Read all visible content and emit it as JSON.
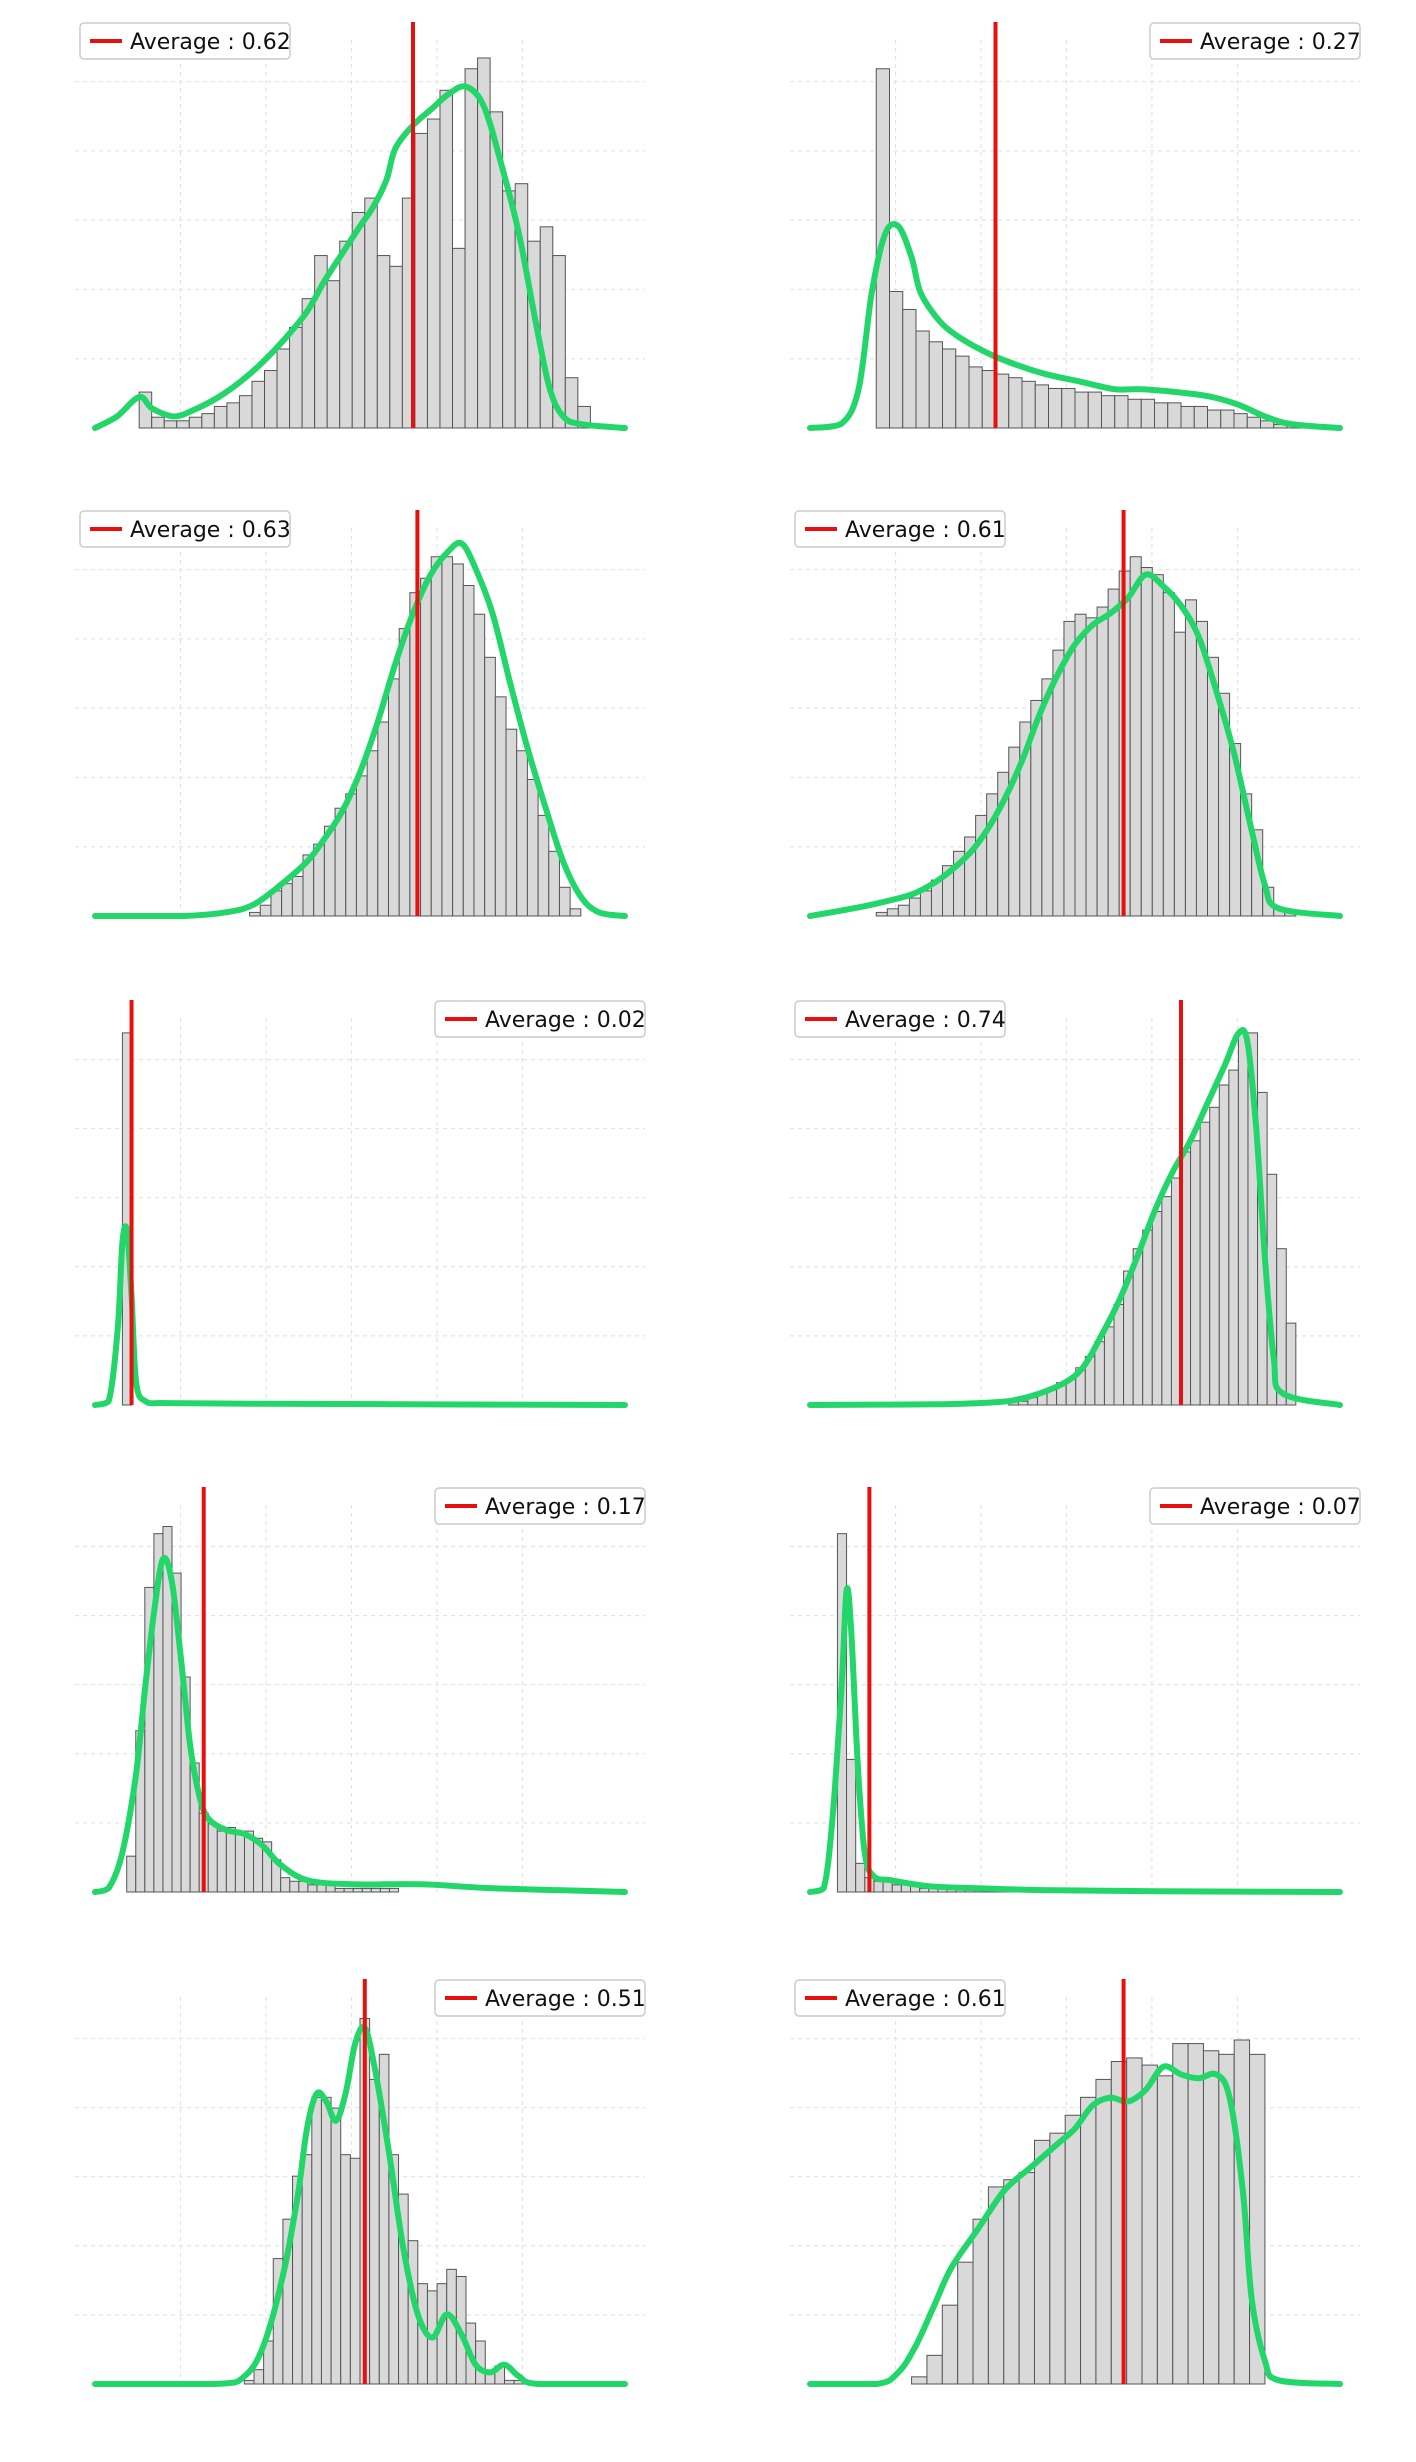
{
  "colors": {
    "bar_fill": "#d9d9d9",
    "bar_edge": "#555555",
    "kde": "#22d66a",
    "mean_line": "#e8100f",
    "grid": "#e3e3e3",
    "legend_border": "#cccccc"
  },
  "chart_data": [
    {
      "type": "histogram",
      "legend": {
        "label": "Average : 0.62",
        "placement": "top-left"
      },
      "mean": 0.62,
      "grid": true,
      "xlim": [
        -0.1,
        1.1
      ],
      "bin_edges_range": [
        0.0,
        1.05
      ],
      "counts": [
        10,
        3,
        2,
        2,
        3,
        4,
        6,
        7,
        9,
        13,
        16,
        22,
        28,
        36,
        48,
        41,
        52,
        60,
        64,
        48,
        45,
        64,
        82,
        86,
        94,
        50,
        100,
        103,
        88,
        66,
        68,
        52,
        56,
        48,
        14,
        6,
        0
      ],
      "kde": [
        [
          -0.1,
          0.0
        ],
        [
          -0.05,
          0.03
        ],
        [
          0.0,
          0.08
        ],
        [
          0.03,
          0.05
        ],
        [
          0.08,
          0.03
        ],
        [
          0.13,
          0.05
        ],
        [
          0.18,
          0.08
        ],
        [
          0.23,
          0.12
        ],
        [
          0.28,
          0.17
        ],
        [
          0.33,
          0.23
        ],
        [
          0.38,
          0.3
        ],
        [
          0.42,
          0.38
        ],
        [
          0.46,
          0.45
        ],
        [
          0.5,
          0.52
        ],
        [
          0.53,
          0.57
        ],
        [
          0.56,
          0.64
        ],
        [
          0.58,
          0.72
        ],
        [
          0.62,
          0.78
        ],
        [
          0.66,
          0.82
        ],
        [
          0.7,
          0.86
        ],
        [
          0.74,
          0.88
        ],
        [
          0.78,
          0.83
        ],
        [
          0.82,
          0.68
        ],
        [
          0.86,
          0.5
        ],
        [
          0.9,
          0.26
        ],
        [
          0.93,
          0.1
        ],
        [
          0.96,
          0.03
        ],
        [
          1.0,
          0.01
        ],
        [
          1.1,
          0.0
        ]
      ],
      "ylim": [
        0,
        108
      ]
    },
    {
      "type": "histogram",
      "legend": {
        "label": "Average : 0.27",
        "placement": "top-right"
      },
      "mean": 0.27,
      "grid": true,
      "xlim": [
        -0.15,
        1.05
      ],
      "bin_edges_range": [
        0.0,
        0.99
      ],
      "counts": [
        100,
        38,
        33,
        27,
        24,
        22,
        20,
        17,
        16,
        15,
        14,
        13,
        12,
        11,
        11,
        10,
        10,
        9,
        9,
        8,
        8,
        7,
        7,
        6,
        6,
        5,
        5,
        4,
        3,
        2,
        1,
        1,
        1
      ],
      "kde": [
        [
          -0.15,
          0.0
        ],
        [
          -0.08,
          0.01
        ],
        [
          -0.04,
          0.1
        ],
        [
          -0.01,
          0.35
        ],
        [
          0.02,
          0.5
        ],
        [
          0.05,
          0.52
        ],
        [
          0.08,
          0.44
        ],
        [
          0.1,
          0.35
        ],
        [
          0.14,
          0.28
        ],
        [
          0.18,
          0.24
        ],
        [
          0.24,
          0.2
        ],
        [
          0.3,
          0.17
        ],
        [
          0.38,
          0.14
        ],
        [
          0.46,
          0.12
        ],
        [
          0.54,
          0.1
        ],
        [
          0.6,
          0.1
        ],
        [
          0.7,
          0.09
        ],
        [
          0.76,
          0.08
        ],
        [
          0.82,
          0.06
        ],
        [
          0.88,
          0.03
        ],
        [
          0.94,
          0.01
        ],
        [
          1.05,
          0.0
        ]
      ],
      "ylim": [
        0,
        108
      ]
    },
    {
      "type": "histogram",
      "legend": {
        "label": "Average : 0.63",
        "placement": "top-left"
      },
      "mean": 0.63,
      "grid": true,
      "xlim": [
        -0.1,
        1.1
      ],
      "bin_edges_range": [
        0.25,
        1.0
      ],
      "counts": [
        1,
        3,
        7,
        9,
        11,
        17,
        20,
        25,
        30,
        34,
        39,
        46,
        54,
        66,
        80,
        90,
        94,
        100,
        100,
        98,
        92,
        84,
        72,
        61,
        52,
        46,
        38,
        28,
        18,
        8,
        2
      ],
      "kde": [
        [
          -0.1,
          0.0
        ],
        [
          0.1,
          0.0
        ],
        [
          0.2,
          0.01
        ],
        [
          0.26,
          0.03
        ],
        [
          0.32,
          0.08
        ],
        [
          0.38,
          0.14
        ],
        [
          0.42,
          0.2
        ],
        [
          0.46,
          0.27
        ],
        [
          0.5,
          0.37
        ],
        [
          0.54,
          0.5
        ],
        [
          0.58,
          0.65
        ],
        [
          0.62,
          0.78
        ],
        [
          0.66,
          0.88
        ],
        [
          0.7,
          0.94
        ],
        [
          0.73,
          0.96
        ],
        [
          0.76,
          0.9
        ],
        [
          0.8,
          0.78
        ],
        [
          0.84,
          0.6
        ],
        [
          0.88,
          0.43
        ],
        [
          0.92,
          0.28
        ],
        [
          0.96,
          0.14
        ],
        [
          1.0,
          0.05
        ],
        [
          1.04,
          0.01
        ],
        [
          1.1,
          0.0
        ]
      ],
      "ylim": [
        0,
        108
      ]
    },
    {
      "type": "histogram",
      "legend": {
        "label": "Average : 0.61",
        "placement": "top-left"
      },
      "mean": 0.61,
      "grid": true,
      "xlim": [
        -0.1,
        1.1
      ],
      "bin_edges_range": [
        0.05,
        1.0
      ],
      "counts": [
        1,
        2,
        3,
        5,
        7,
        10,
        14,
        18,
        22,
        28,
        34,
        40,
        47,
        54,
        60,
        66,
        74,
        82,
        84,
        83,
        86,
        91,
        96,
        100,
        97,
        95,
        90,
        79,
        88,
        82,
        72,
        62,
        48,
        34,
        24,
        8,
        2,
        1
      ],
      "kde": [
        [
          -0.1,
          0.0
        ],
        [
          0.0,
          0.02
        ],
        [
          0.08,
          0.04
        ],
        [
          0.14,
          0.06
        ],
        [
          0.2,
          0.1
        ],
        [
          0.26,
          0.16
        ],
        [
          0.3,
          0.22
        ],
        [
          0.34,
          0.3
        ],
        [
          0.38,
          0.4
        ],
        [
          0.42,
          0.52
        ],
        [
          0.46,
          0.62
        ],
        [
          0.5,
          0.7
        ],
        [
          0.54,
          0.75
        ],
        [
          0.58,
          0.78
        ],
        [
          0.62,
          0.82
        ],
        [
          0.66,
          0.88
        ],
        [
          0.7,
          0.85
        ],
        [
          0.74,
          0.8
        ],
        [
          0.78,
          0.72
        ],
        [
          0.82,
          0.58
        ],
        [
          0.86,
          0.42
        ],
        [
          0.9,
          0.22
        ],
        [
          0.93,
          0.08
        ],
        [
          0.96,
          0.02
        ],
        [
          1.1,
          0.0
        ]
      ],
      "ylim": [
        0,
        108
      ]
    },
    {
      "type": "histogram",
      "legend": {
        "label": "Average : 0.02",
        "placement": "top-right"
      },
      "mean": 0.02,
      "grid": true,
      "xlim": [
        -0.06,
        1.1
      ],
      "bin_edges_range": [
        0.0,
        0.02
      ],
      "counts": [
        100
      ],
      "kde": [
        [
          -0.06,
          0.0
        ],
        [
          -0.03,
          0.01
        ],
        [
          -0.01,
          0.2
        ],
        [
          0.0,
          0.42
        ],
        [
          0.01,
          0.45
        ],
        [
          0.02,
          0.28
        ],
        [
          0.03,
          0.06
        ],
        [
          0.05,
          0.01
        ],
        [
          0.1,
          0.005
        ],
        [
          0.3,
          0.003
        ],
        [
          0.6,
          0.002
        ],
        [
          1.1,
          0.0
        ]
      ],
      "ylim": [
        0,
        104
      ]
    },
    {
      "type": "histogram",
      "legend": {
        "label": "Average : 0.74",
        "placement": "top-left"
      },
      "mean": 0.74,
      "grid": true,
      "xlim": [
        -0.1,
        1.1
      ],
      "bin_edges_range": [
        0.35,
        1.0
      ],
      "counts": [
        1,
        1,
        2,
        3,
        4,
        6,
        7,
        10,
        13,
        17,
        21,
        27,
        36,
        42,
        47,
        52,
        56,
        61,
        68,
        71,
        76,
        80,
        86,
        90,
        100,
        100,
        84,
        62,
        42,
        22
      ],
      "kde": [
        [
          -0.1,
          0.0
        ],
        [
          0.2,
          0.002
        ],
        [
          0.3,
          0.006
        ],
        [
          0.36,
          0.012
        ],
        [
          0.42,
          0.03
        ],
        [
          0.48,
          0.06
        ],
        [
          0.52,
          0.1
        ],
        [
          0.56,
          0.18
        ],
        [
          0.6,
          0.27
        ],
        [
          0.64,
          0.38
        ],
        [
          0.68,
          0.5
        ],
        [
          0.72,
          0.6
        ],
        [
          0.76,
          0.68
        ],
        [
          0.8,
          0.78
        ],
        [
          0.84,
          0.88
        ],
        [
          0.87,
          0.96
        ],
        [
          0.89,
          0.94
        ],
        [
          0.91,
          0.72
        ],
        [
          0.93,
          0.38
        ],
        [
          0.95,
          0.12
        ],
        [
          0.97,
          0.03
        ],
        [
          1.1,
          0.0
        ]
      ],
      "ylim": [
        0,
        104
      ]
    },
    {
      "type": "histogram",
      "legend": {
        "label": "Average : 0.17",
        "placement": "top-right"
      },
      "mean": 0.17,
      "grid": true,
      "xlim": [
        -0.07,
        1.1
      ],
      "bin_edges_range": [
        0.0,
        0.6
      ],
      "counts": [
        10,
        45,
        85,
        100,
        102,
        89,
        60,
        36,
        22,
        19,
        17,
        18,
        16,
        17,
        15,
        14,
        9,
        4,
        3,
        3,
        2,
        2,
        2,
        1,
        1,
        1,
        1,
        1,
        1,
        1
      ],
      "kde": [
        [
          -0.07,
          0.0
        ],
        [
          -0.04,
          0.01
        ],
        [
          -0.01,
          0.1
        ],
        [
          0.02,
          0.3
        ],
        [
          0.04,
          0.52
        ],
        [
          0.06,
          0.72
        ],
        [
          0.08,
          0.86
        ],
        [
          0.1,
          0.8
        ],
        [
          0.12,
          0.6
        ],
        [
          0.14,
          0.38
        ],
        [
          0.16,
          0.25
        ],
        [
          0.18,
          0.19
        ],
        [
          0.22,
          0.16
        ],
        [
          0.26,
          0.15
        ],
        [
          0.3,
          0.12
        ],
        [
          0.34,
          0.07
        ],
        [
          0.4,
          0.03
        ],
        [
          0.5,
          0.02
        ],
        [
          0.65,
          0.02
        ],
        [
          0.8,
          0.01
        ],
        [
          0.95,
          0.005
        ],
        [
          1.1,
          0.0
        ]
      ],
      "ylim": [
        0,
        108
      ]
    },
    {
      "type": "histogram",
      "legend": {
        "label": "Average : 0.07",
        "placement": "top-right"
      },
      "mean": 0.07,
      "grid": true,
      "xlim": [
        -0.06,
        1.1
      ],
      "bin_edges_range": [
        0.0,
        0.48
      ],
      "counts": [
        100,
        37,
        8,
        4,
        3,
        3,
        2,
        2,
        2,
        1,
        1,
        1,
        1,
        1,
        1,
        1,
        1,
        1,
        1,
        1,
        1,
        1,
        1,
        1
      ],
      "kde": [
        [
          -0.06,
          0.0
        ],
        [
          -0.03,
          0.01
        ],
        [
          -0.01,
          0.2
        ],
        [
          0.01,
          0.55
        ],
        [
          0.02,
          0.78
        ],
        [
          0.03,
          0.68
        ],
        [
          0.045,
          0.32
        ],
        [
          0.06,
          0.1
        ],
        [
          0.08,
          0.04
        ],
        [
          0.12,
          0.03
        ],
        [
          0.2,
          0.015
        ],
        [
          0.3,
          0.01
        ],
        [
          0.45,
          0.005
        ],
        [
          0.7,
          0.002
        ],
        [
          1.1,
          0.0
        ]
      ],
      "ylim": [
        0,
        108
      ]
    },
    {
      "type": "histogram",
      "legend": {
        "label": "Average : 0.51",
        "placement": "top-right"
      },
      "mean": 0.51,
      "grid": true,
      "xlim": [
        -0.05,
        1.05
      ],
      "bin_edges_range": [
        0.26,
        0.84
      ],
      "counts": [
        1,
        4,
        12,
        35,
        46,
        58,
        64,
        80,
        80,
        77,
        64,
        63,
        102,
        85,
        92,
        64,
        53,
        40,
        28,
        26,
        28,
        32,
        30,
        17,
        12,
        3,
        5,
        1,
        1
      ],
      "kde": [
        [
          -0.05,
          0.0
        ],
        [
          0.2,
          0.0
        ],
        [
          0.26,
          0.02
        ],
        [
          0.3,
          0.1
        ],
        [
          0.34,
          0.28
        ],
        [
          0.37,
          0.48
        ],
        [
          0.39,
          0.66
        ],
        [
          0.41,
          0.75
        ],
        [
          0.43,
          0.73
        ],
        [
          0.45,
          0.68
        ],
        [
          0.47,
          0.75
        ],
        [
          0.49,
          0.88
        ],
        [
          0.51,
          0.92
        ],
        [
          0.53,
          0.82
        ],
        [
          0.56,
          0.6
        ],
        [
          0.59,
          0.35
        ],
        [
          0.62,
          0.18
        ],
        [
          0.65,
          0.12
        ],
        [
          0.68,
          0.18
        ],
        [
          0.71,
          0.13
        ],
        [
          0.74,
          0.05
        ],
        [
          0.77,
          0.03
        ],
        [
          0.8,
          0.05
        ],
        [
          0.83,
          0.02
        ],
        [
          0.87,
          0.0
        ],
        [
          1.05,
          0.0
        ]
      ],
      "ylim": [
        0,
        108
      ]
    },
    {
      "type": "histogram",
      "legend": {
        "label": "Average : 0.61",
        "placement": "top-left"
      },
      "mean": 0.61,
      "grid": true,
      "xlim": [
        -0.1,
        1.1
      ],
      "bin_edges_range": [
        0.13,
        0.93
      ],
      "counts": [
        2,
        8,
        22,
        34,
        46,
        55,
        57,
        59,
        68,
        70,
        75,
        80,
        85,
        90,
        91,
        89,
        86,
        95,
        95,
        93,
        92,
        96,
        92
      ],
      "kde": [
        [
          -0.1,
          0.0
        ],
        [
          0.05,
          0.0
        ],
        [
          0.1,
          0.03
        ],
        [
          0.14,
          0.1
        ],
        [
          0.18,
          0.2
        ],
        [
          0.22,
          0.3
        ],
        [
          0.28,
          0.4
        ],
        [
          0.34,
          0.5
        ],
        [
          0.4,
          0.56
        ],
        [
          0.46,
          0.62
        ],
        [
          0.5,
          0.66
        ],
        [
          0.54,
          0.72
        ],
        [
          0.58,
          0.74
        ],
        [
          0.62,
          0.73
        ],
        [
          0.66,
          0.76
        ],
        [
          0.7,
          0.82
        ],
        [
          0.74,
          0.8
        ],
        [
          0.78,
          0.79
        ],
        [
          0.82,
          0.8
        ],
        [
          0.85,
          0.74
        ],
        [
          0.88,
          0.5
        ],
        [
          0.9,
          0.22
        ],
        [
          0.93,
          0.06
        ],
        [
          0.96,
          0.01
        ],
        [
          1.1,
          0.0
        ]
      ],
      "ylim": [
        0,
        108
      ]
    }
  ]
}
